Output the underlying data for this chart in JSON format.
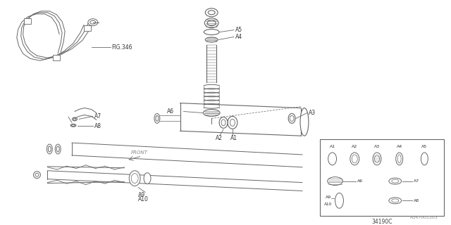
{
  "bg_color": "#ffffff",
  "line_color": "#666666",
  "part_code": "34190C",
  "doc_id": "A347001203",
  "fig_ref": "FIG.346"
}
